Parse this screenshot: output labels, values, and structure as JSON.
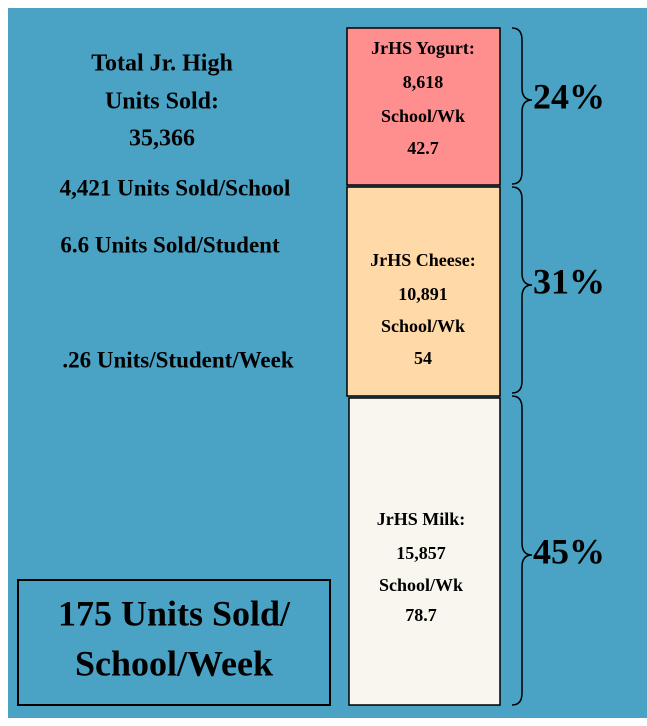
{
  "left": {
    "total_lines": [
      "Total Jr. High",
      "Units Sold:",
      "35,366"
    ],
    "stats": [
      "4,421 Units Sold/School",
      "6.6 Units Sold/Student",
      ".26 Units/Student/Week"
    ],
    "box_lines": [
      "175 Units Sold/",
      "School/Week"
    ]
  },
  "segments": [
    {
      "lines": [
        "JrHS Yogurt:",
        "8,618",
        "School/Wk",
        "42.7"
      ],
      "percent": "24%"
    },
    {
      "lines": [
        "JrHS Cheese:",
        "10,891",
        "School/Wk",
        "54"
      ],
      "percent": "31%"
    },
    {
      "lines": [
        "JrHS Milk:",
        "15,857",
        "School/Wk",
        "78.7"
      ],
      "percent": "45%"
    }
  ]
}
